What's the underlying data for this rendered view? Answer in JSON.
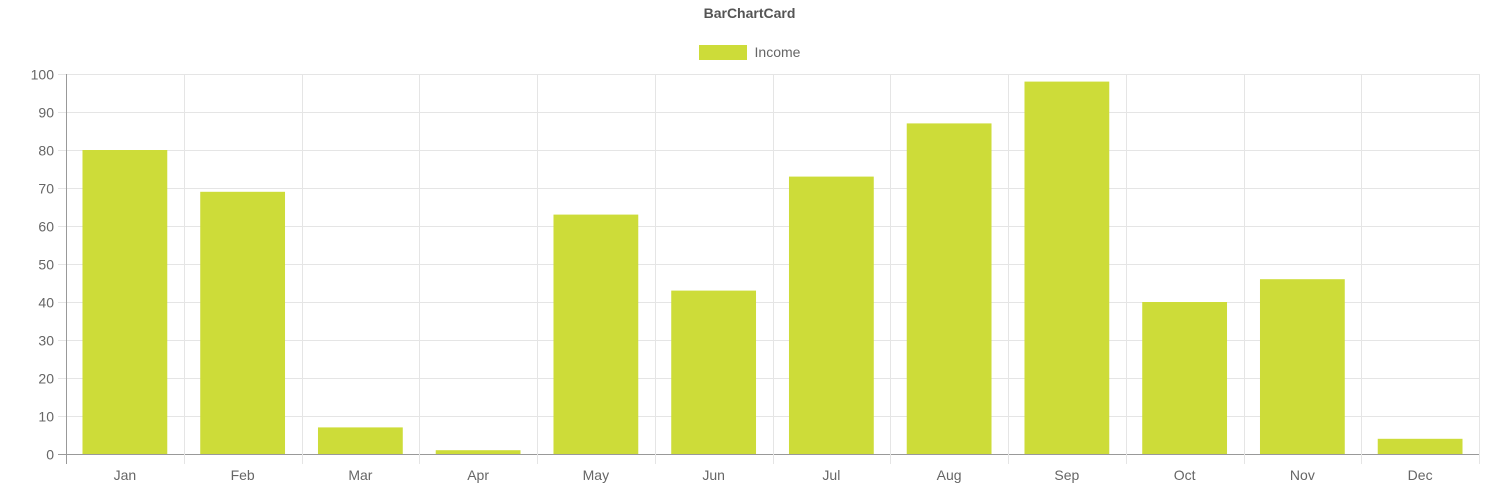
{
  "chart_data": {
    "type": "bar",
    "title": "BarChartCard",
    "categories": [
      "Jan",
      "Feb",
      "Mar",
      "Apr",
      "May",
      "Jun",
      "Jul",
      "Aug",
      "Sep",
      "Oct",
      "Nov",
      "Dec"
    ],
    "series": [
      {
        "name": "Income",
        "values": [
          80,
          69,
          7,
          1,
          63,
          43,
          73,
          87,
          98,
          40,
          46,
          4
        ],
        "color": "#cddc39"
      }
    ],
    "ylim": [
      0,
      100
    ],
    "yticks": [
      0,
      10,
      20,
      30,
      40,
      50,
      60,
      70,
      80,
      90,
      100
    ],
    "grid": true,
    "legend_position": "top-center",
    "xlabel": "",
    "ylabel": ""
  },
  "colors": {
    "grid": "#e5e5e5",
    "axis": "#999999",
    "text": "#666666"
  }
}
